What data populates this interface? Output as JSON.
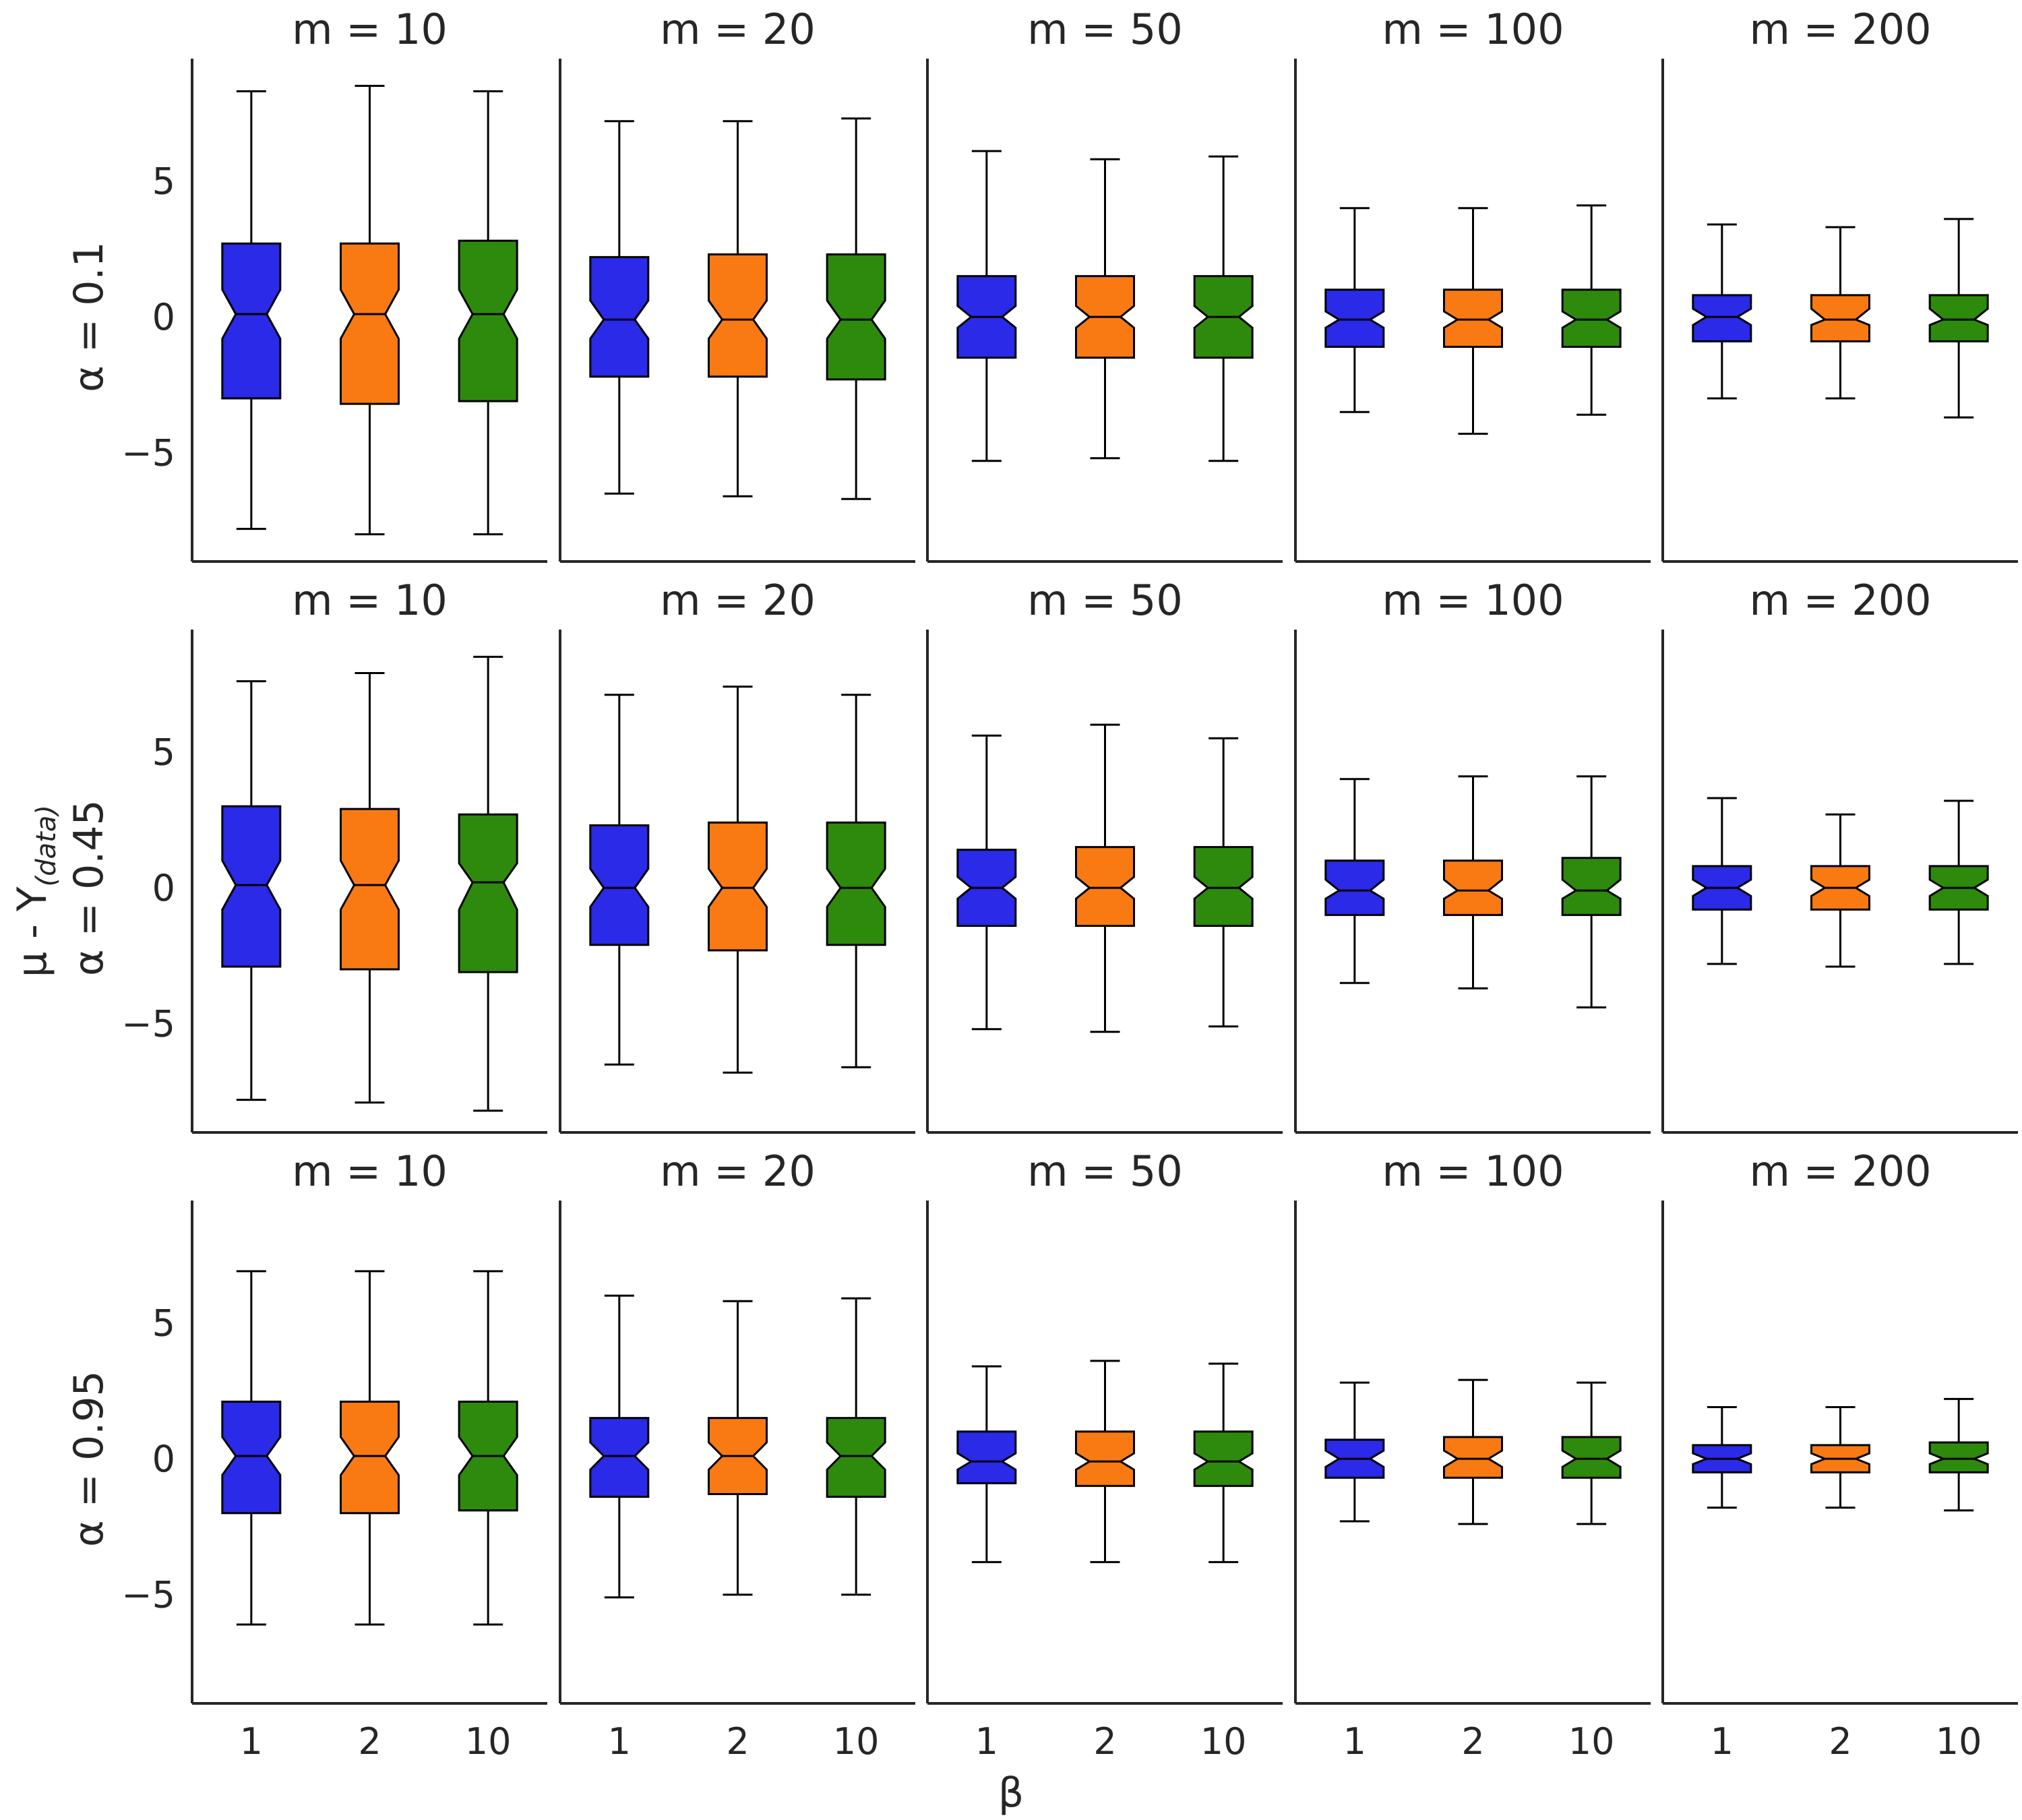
{
  "chart_data": {
    "type": "boxplot",
    "layout": "3 rows x 5 columns of notched box plots",
    "xlabel": "β",
    "ylabel_shared": "μ - Y",
    "ylabel_shared_subscript": "(data)",
    "categories": [
      "1",
      "2",
      "10"
    ],
    "ylim": [
      -9,
      9.5
    ],
    "yticks": [
      -5,
      0,
      5
    ],
    "ytick_labels": [
      "−5",
      "0",
      "5"
    ],
    "colors": [
      "#2a2ae8",
      "#f97a13",
      "#2e8a0c"
    ],
    "rows": [
      {
        "label": "α = 0.1",
        "panels": [
          {
            "title": "m = 10",
            "boxes": [
              {
                "whisker_low": -7.8,
                "q1": -3.0,
                "median": 0.1,
                "q3": 2.7,
                "whisker_high": 8.3,
                "notch_low": -0.8,
                "notch_high": 1.0
              },
              {
                "whisker_low": -8.0,
                "q1": -3.2,
                "median": 0.1,
                "q3": 2.7,
                "whisker_high": 8.5,
                "notch_low": -0.8,
                "notch_high": 1.0
              },
              {
                "whisker_low": -8.0,
                "q1": -3.1,
                "median": 0.1,
                "q3": 2.8,
                "whisker_high": 8.3,
                "notch_low": -0.8,
                "notch_high": 1.0
              }
            ]
          },
          {
            "title": "m = 20",
            "boxes": [
              {
                "whisker_low": -6.5,
                "q1": -2.2,
                "median": -0.1,
                "q3": 2.2,
                "whisker_high": 7.2,
                "notch_low": -0.8,
                "notch_high": 0.6
              },
              {
                "whisker_low": -6.6,
                "q1": -2.2,
                "median": -0.1,
                "q3": 2.3,
                "whisker_high": 7.2,
                "notch_low": -0.8,
                "notch_high": 0.6
              },
              {
                "whisker_low": -6.7,
                "q1": -2.3,
                "median": -0.1,
                "q3": 2.3,
                "whisker_high": 7.3,
                "notch_low": -0.8,
                "notch_high": 0.6
              }
            ]
          },
          {
            "title": "m = 50",
            "boxes": [
              {
                "whisker_low": -5.3,
                "q1": -1.5,
                "median": 0.0,
                "q3": 1.5,
                "whisker_high": 6.1,
                "notch_low": -0.4,
                "notch_high": 0.4
              },
              {
                "whisker_low": -5.2,
                "q1": -1.5,
                "median": 0.0,
                "q3": 1.5,
                "whisker_high": 5.8,
                "notch_low": -0.4,
                "notch_high": 0.4
              },
              {
                "whisker_low": -5.3,
                "q1": -1.5,
                "median": 0.0,
                "q3": 1.5,
                "whisker_high": 5.9,
                "notch_low": -0.4,
                "notch_high": 0.4
              }
            ]
          },
          {
            "title": "m = 100",
            "boxes": [
              {
                "whisker_low": -3.5,
                "q1": -1.1,
                "median": -0.1,
                "q3": 1.0,
                "whisker_high": 4.0,
                "notch_low": -0.4,
                "notch_high": 0.2
              },
              {
                "whisker_low": -4.3,
                "q1": -1.1,
                "median": -0.1,
                "q3": 1.0,
                "whisker_high": 4.0,
                "notch_low": -0.4,
                "notch_high": 0.2
              },
              {
                "whisker_low": -3.6,
                "q1": -1.1,
                "median": -0.1,
                "q3": 1.0,
                "whisker_high": 4.1,
                "notch_low": -0.4,
                "notch_high": 0.2
              }
            ]
          },
          {
            "title": "m = 200",
            "boxes": [
              {
                "whisker_low": -3.0,
                "q1": -0.9,
                "median": 0.0,
                "q3": 0.8,
                "whisker_high": 3.4,
                "notch_low": -0.3,
                "notch_high": 0.3
              },
              {
                "whisker_low": -3.0,
                "q1": -0.9,
                "median": -0.1,
                "q3": 0.8,
                "whisker_high": 3.3,
                "notch_low": -0.3,
                "notch_high": 0.3
              },
              {
                "whisker_low": -3.7,
                "q1": -0.9,
                "median": -0.1,
                "q3": 0.8,
                "whisker_high": 3.6,
                "notch_low": -0.3,
                "notch_high": 0.3
              }
            ]
          }
        ]
      },
      {
        "label": "α = 0.45",
        "panels": [
          {
            "title": "m = 10",
            "boxes": [
              {
                "whisker_low": -7.8,
                "q1": -2.9,
                "median": 0.1,
                "q3": 3.0,
                "whisker_high": 7.6,
                "notch_low": -0.8,
                "notch_high": 1.0
              },
              {
                "whisker_low": -7.9,
                "q1": -3.0,
                "median": 0.1,
                "q3": 2.9,
                "whisker_high": 7.9,
                "notch_low": -0.8,
                "notch_high": 1.0
              },
              {
                "whisker_low": -8.2,
                "q1": -3.1,
                "median": 0.2,
                "q3": 2.7,
                "whisker_high": 8.5,
                "notch_low": -0.8,
                "notch_high": 0.9
              }
            ]
          },
          {
            "title": "m = 20",
            "boxes": [
              {
                "whisker_low": -6.5,
                "q1": -2.1,
                "median": 0.0,
                "q3": 2.3,
                "whisker_high": 7.1,
                "notch_low": -0.7,
                "notch_high": 0.7
              },
              {
                "whisker_low": -6.8,
                "q1": -2.3,
                "median": 0.0,
                "q3": 2.4,
                "whisker_high": 7.4,
                "notch_low": -0.7,
                "notch_high": 0.7
              },
              {
                "whisker_low": -6.6,
                "q1": -2.1,
                "median": 0.0,
                "q3": 2.4,
                "whisker_high": 7.1,
                "notch_low": -0.7,
                "notch_high": 0.7
              }
            ]
          },
          {
            "title": "m = 50",
            "boxes": [
              {
                "whisker_low": -5.2,
                "q1": -1.4,
                "median": 0.0,
                "q3": 1.4,
                "whisker_high": 5.6,
                "notch_low": -0.4,
                "notch_high": 0.4
              },
              {
                "whisker_low": -5.3,
                "q1": -1.4,
                "median": 0.0,
                "q3": 1.5,
                "whisker_high": 6.0,
                "notch_low": -0.4,
                "notch_high": 0.4
              },
              {
                "whisker_low": -5.1,
                "q1": -1.4,
                "median": 0.0,
                "q3": 1.5,
                "whisker_high": 5.5,
                "notch_low": -0.4,
                "notch_high": 0.4
              }
            ]
          },
          {
            "title": "m = 100",
            "boxes": [
              {
                "whisker_low": -3.5,
                "q1": -1.0,
                "median": -0.1,
                "q3": 1.0,
                "whisker_high": 4.0,
                "notch_low": -0.4,
                "notch_high": 0.3
              },
              {
                "whisker_low": -3.7,
                "q1": -1.0,
                "median": -0.1,
                "q3": 1.0,
                "whisker_high": 4.1,
                "notch_low": -0.4,
                "notch_high": 0.3
              },
              {
                "whisker_low": -4.4,
                "q1": -1.0,
                "median": -0.1,
                "q3": 1.1,
                "whisker_high": 4.1,
                "notch_low": -0.4,
                "notch_high": 0.3
              }
            ]
          },
          {
            "title": "m = 200",
            "boxes": [
              {
                "whisker_low": -2.8,
                "q1": -0.8,
                "median": 0.0,
                "q3": 0.8,
                "whisker_high": 3.3,
                "notch_low": -0.3,
                "notch_high": 0.3
              },
              {
                "whisker_low": -2.9,
                "q1": -0.8,
                "median": 0.0,
                "q3": 0.8,
                "whisker_high": 2.7,
                "notch_low": -0.3,
                "notch_high": 0.3
              },
              {
                "whisker_low": -2.8,
                "q1": -0.8,
                "median": 0.0,
                "q3": 0.8,
                "whisker_high": 3.2,
                "notch_low": -0.3,
                "notch_high": 0.3
              }
            ]
          }
        ]
      },
      {
        "label": "α = 0.95",
        "panels": [
          {
            "title": "m = 10",
            "boxes": [
              {
                "whisker_low": -6.1,
                "q1": -2.0,
                "median": 0.1,
                "q3": 2.1,
                "whisker_high": 6.9,
                "notch_low": -0.6,
                "notch_high": 0.8
              },
              {
                "whisker_low": -6.1,
                "q1": -2.0,
                "median": 0.1,
                "q3": 2.1,
                "whisker_high": 6.9,
                "notch_low": -0.6,
                "notch_high": 0.8
              },
              {
                "whisker_low": -6.1,
                "q1": -1.9,
                "median": 0.1,
                "q3": 2.1,
                "whisker_high": 6.9,
                "notch_low": -0.6,
                "notch_high": 0.8
              }
            ]
          },
          {
            "title": "m = 20",
            "boxes": [
              {
                "whisker_low": -5.1,
                "q1": -1.4,
                "median": 0.1,
                "q3": 1.5,
                "whisker_high": 6.0,
                "notch_low": -0.4,
                "notch_high": 0.6
              },
              {
                "whisker_low": -5.0,
                "q1": -1.3,
                "median": 0.1,
                "q3": 1.5,
                "whisker_high": 5.8,
                "notch_low": -0.4,
                "notch_high": 0.6
              },
              {
                "whisker_low": -5.0,
                "q1": -1.4,
                "median": 0.1,
                "q3": 1.5,
                "whisker_high": 5.9,
                "notch_low": -0.4,
                "notch_high": 0.6
              }
            ]
          },
          {
            "title": "m = 50",
            "boxes": [
              {
                "whisker_low": -3.8,
                "q1": -0.9,
                "median": -0.1,
                "q3": 1.0,
                "whisker_high": 3.4,
                "notch_low": -0.4,
                "notch_high": 0.2
              },
              {
                "whisker_low": -3.8,
                "q1": -1.0,
                "median": -0.1,
                "q3": 1.0,
                "whisker_high": 3.6,
                "notch_low": -0.4,
                "notch_high": 0.2
              },
              {
                "whisker_low": -3.8,
                "q1": -1.0,
                "median": -0.1,
                "q3": 1.0,
                "whisker_high": 3.5,
                "notch_low": -0.4,
                "notch_high": 0.2
              }
            ]
          },
          {
            "title": "m = 100",
            "boxes": [
              {
                "whisker_low": -2.3,
                "q1": -0.7,
                "median": 0.0,
                "q3": 0.7,
                "whisker_high": 2.8,
                "notch_low": -0.3,
                "notch_high": 0.3
              },
              {
                "whisker_low": -2.4,
                "q1": -0.7,
                "median": 0.0,
                "q3": 0.8,
                "whisker_high": 2.9,
                "notch_low": -0.3,
                "notch_high": 0.3
              },
              {
                "whisker_low": -2.4,
                "q1": -0.7,
                "median": 0.0,
                "q3": 0.8,
                "whisker_high": 2.8,
                "notch_low": -0.3,
                "notch_high": 0.3
              }
            ]
          },
          {
            "title": "m = 200",
            "boxes": [
              {
                "whisker_low": -1.8,
                "q1": -0.5,
                "median": 0.0,
                "q3": 0.5,
                "whisker_high": 1.9,
                "notch_low": -0.2,
                "notch_high": 0.2
              },
              {
                "whisker_low": -1.8,
                "q1": -0.5,
                "median": 0.0,
                "q3": 0.5,
                "whisker_high": 1.9,
                "notch_low": -0.2,
                "notch_high": 0.2
              },
              {
                "whisker_low": -1.9,
                "q1": -0.5,
                "median": 0.0,
                "q3": 0.6,
                "whisker_high": 2.2,
                "notch_low": -0.2,
                "notch_high": 0.2
              }
            ]
          }
        ]
      }
    ]
  }
}
